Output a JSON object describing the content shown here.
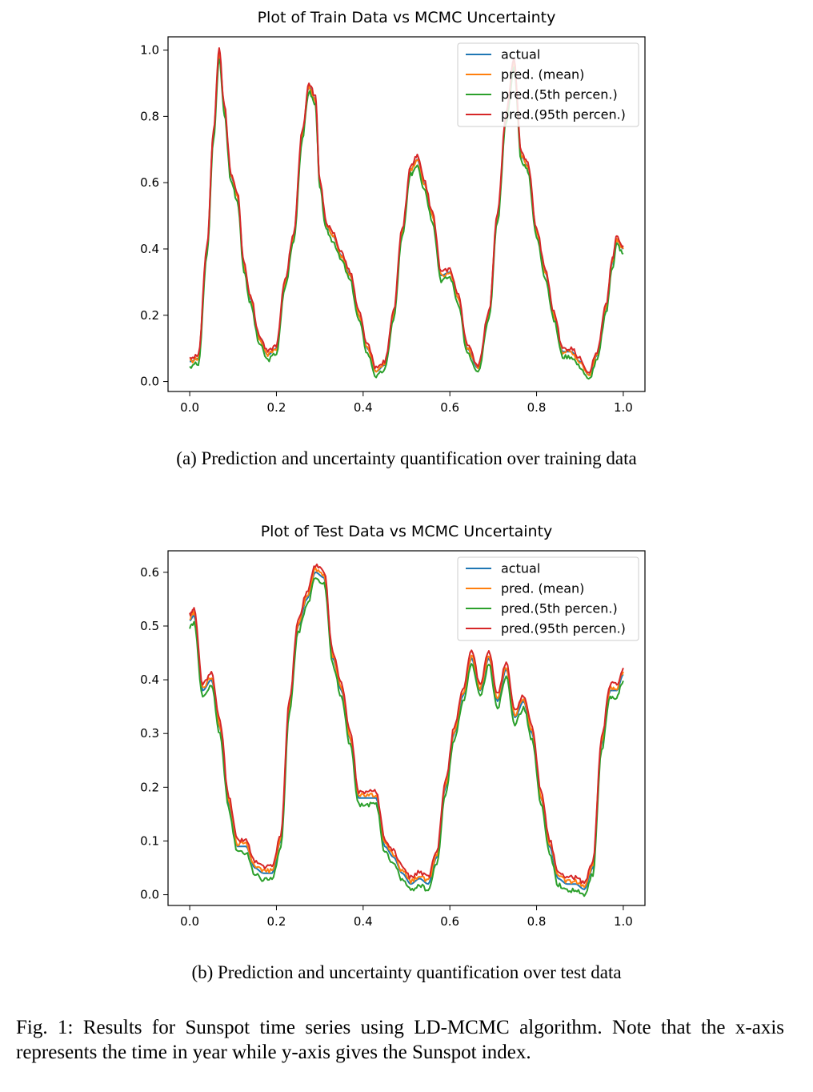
{
  "chart_data": [
    {
      "type": "line",
      "title": "Plot of Train Data vs MCMC Uncertainty",
      "xlabel": "",
      "ylabel": "",
      "xlim": [
        -0.05,
        1.05
      ],
      "ylim": [
        -0.03,
        1.04
      ],
      "xticks": [
        "0.0",
        "0.2",
        "0.4",
        "0.6",
        "0.8",
        "1.0"
      ],
      "yticks": [
        "0.0",
        "0.2",
        "0.4",
        "0.6",
        "0.8",
        "1.0"
      ],
      "grid": false,
      "legend_position": "top-right",
      "x": [
        0.0,
        0.02,
        0.04,
        0.055,
        0.068,
        0.08,
        0.095,
        0.11,
        0.125,
        0.14,
        0.16,
        0.18,
        0.2,
        0.22,
        0.24,
        0.26,
        0.275,
        0.29,
        0.3,
        0.315,
        0.33,
        0.35,
        0.37,
        0.39,
        0.41,
        0.43,
        0.45,
        0.47,
        0.49,
        0.51,
        0.525,
        0.54,
        0.56,
        0.58,
        0.6,
        0.62,
        0.64,
        0.665,
        0.69,
        0.71,
        0.73,
        0.748,
        0.765,
        0.78,
        0.8,
        0.82,
        0.84,
        0.86,
        0.88,
        0.9,
        0.92,
        0.94,
        0.96,
        0.975,
        0.985,
        1.0
      ],
      "series": [
        {
          "name": "actual",
          "color": "#1f77b4",
          "offset": 0,
          "values": [
            0.06,
            0.07,
            0.4,
            0.75,
            0.99,
            0.82,
            0.62,
            0.56,
            0.35,
            0.25,
            0.13,
            0.08,
            0.1,
            0.3,
            0.44,
            0.75,
            0.89,
            0.85,
            0.6,
            0.47,
            0.44,
            0.38,
            0.32,
            0.2,
            0.1,
            0.03,
            0.05,
            0.2,
            0.45,
            0.64,
            0.67,
            0.6,
            0.5,
            0.32,
            0.33,
            0.25,
            0.1,
            0.04,
            0.2,
            0.5,
            0.8,
            0.96,
            0.68,
            0.65,
            0.45,
            0.33,
            0.2,
            0.09,
            0.09,
            0.06,
            0.02,
            0.08,
            0.22,
            0.36,
            0.43,
            0.4
          ]
        },
        {
          "name": "pred. (mean)",
          "color": "#ff7f0e",
          "offset": 0,
          "values": [
            0.06,
            0.07,
            0.4,
            0.75,
            0.99,
            0.82,
            0.62,
            0.56,
            0.35,
            0.25,
            0.13,
            0.08,
            0.1,
            0.3,
            0.44,
            0.75,
            0.89,
            0.85,
            0.6,
            0.47,
            0.44,
            0.38,
            0.32,
            0.2,
            0.1,
            0.03,
            0.05,
            0.2,
            0.45,
            0.64,
            0.67,
            0.6,
            0.5,
            0.32,
            0.33,
            0.25,
            0.1,
            0.04,
            0.2,
            0.5,
            0.8,
            0.96,
            0.68,
            0.65,
            0.45,
            0.33,
            0.2,
            0.09,
            0.09,
            0.06,
            0.02,
            0.08,
            0.22,
            0.36,
            0.43,
            0.4
          ]
        },
        {
          "name": "pred.(5th percen.)",
          "color": "#2ca02c",
          "offset": -0.015,
          "values": [
            0.06,
            0.07,
            0.4,
            0.75,
            0.99,
            0.82,
            0.62,
            0.56,
            0.35,
            0.25,
            0.13,
            0.08,
            0.1,
            0.3,
            0.44,
            0.75,
            0.89,
            0.85,
            0.6,
            0.47,
            0.44,
            0.38,
            0.32,
            0.2,
            0.1,
            0.03,
            0.05,
            0.2,
            0.45,
            0.64,
            0.67,
            0.6,
            0.5,
            0.32,
            0.33,
            0.25,
            0.1,
            0.04,
            0.2,
            0.5,
            0.8,
            0.96,
            0.68,
            0.65,
            0.45,
            0.33,
            0.2,
            0.09,
            0.09,
            0.06,
            0.02,
            0.08,
            0.22,
            0.36,
            0.43,
            0.4
          ]
        },
        {
          "name": "pred.(95th percen.)",
          "color": "#d62728",
          "offset": 0.01,
          "values": [
            0.06,
            0.07,
            0.4,
            0.75,
            0.99,
            0.82,
            0.62,
            0.56,
            0.35,
            0.25,
            0.13,
            0.08,
            0.1,
            0.3,
            0.44,
            0.75,
            0.89,
            0.85,
            0.6,
            0.47,
            0.44,
            0.38,
            0.32,
            0.2,
            0.1,
            0.03,
            0.05,
            0.2,
            0.45,
            0.64,
            0.67,
            0.6,
            0.5,
            0.32,
            0.33,
            0.25,
            0.1,
            0.04,
            0.2,
            0.5,
            0.8,
            0.96,
            0.68,
            0.65,
            0.45,
            0.33,
            0.2,
            0.09,
            0.09,
            0.06,
            0.02,
            0.08,
            0.22,
            0.36,
            0.43,
            0.4
          ]
        }
      ]
    },
    {
      "type": "line",
      "title": "Plot of Test Data vs MCMC Uncertainty",
      "xlabel": "",
      "ylabel": "",
      "xlim": [
        -0.05,
        1.05
      ],
      "ylim": [
        -0.02,
        0.64
      ],
      "xticks": [
        "0.0",
        "0.2",
        "0.4",
        "0.6",
        "0.8",
        "1.0"
      ],
      "yticks": [
        "0.0",
        "0.1",
        "0.2",
        "0.3",
        "0.4",
        "0.5",
        "0.6"
      ],
      "grid": false,
      "legend_position": "top-right",
      "x": [
        0.0,
        0.01,
        0.03,
        0.05,
        0.07,
        0.09,
        0.11,
        0.13,
        0.15,
        0.17,
        0.19,
        0.21,
        0.23,
        0.25,
        0.27,
        0.29,
        0.31,
        0.33,
        0.35,
        0.37,
        0.39,
        0.41,
        0.43,
        0.45,
        0.47,
        0.49,
        0.51,
        0.53,
        0.55,
        0.57,
        0.59,
        0.61,
        0.63,
        0.65,
        0.67,
        0.69,
        0.71,
        0.73,
        0.75,
        0.77,
        0.79,
        0.81,
        0.83,
        0.85,
        0.87,
        0.89,
        0.91,
        0.93,
        0.95,
        0.97,
        0.985,
        1.0
      ],
      "series": [
        {
          "name": "actual",
          "color": "#1f77b4",
          "offset": 0,
          "values": [
            0.51,
            0.52,
            0.38,
            0.4,
            0.31,
            0.17,
            0.09,
            0.09,
            0.05,
            0.04,
            0.04,
            0.1,
            0.35,
            0.5,
            0.55,
            0.6,
            0.59,
            0.44,
            0.38,
            0.29,
            0.18,
            0.18,
            0.18,
            0.09,
            0.07,
            0.04,
            0.02,
            0.03,
            0.02,
            0.07,
            0.2,
            0.3,
            0.37,
            0.44,
            0.38,
            0.44,
            0.36,
            0.42,
            0.33,
            0.36,
            0.3,
            0.18,
            0.09,
            0.03,
            0.02,
            0.02,
            0.01,
            0.05,
            0.28,
            0.38,
            0.38,
            0.41
          ]
        },
        {
          "name": "pred. (mean)",
          "color": "#ff7f0e",
          "offset": 0.005,
          "values": [
            0.51,
            0.52,
            0.38,
            0.4,
            0.31,
            0.17,
            0.09,
            0.09,
            0.05,
            0.04,
            0.04,
            0.1,
            0.35,
            0.5,
            0.55,
            0.6,
            0.59,
            0.44,
            0.38,
            0.29,
            0.18,
            0.18,
            0.18,
            0.09,
            0.07,
            0.04,
            0.02,
            0.03,
            0.02,
            0.07,
            0.2,
            0.3,
            0.37,
            0.44,
            0.38,
            0.44,
            0.36,
            0.42,
            0.33,
            0.36,
            0.3,
            0.18,
            0.09,
            0.03,
            0.02,
            0.02,
            0.01,
            0.05,
            0.28,
            0.38,
            0.38,
            0.41
          ]
        },
        {
          "name": "pred.(5th percen.)",
          "color": "#2ca02c",
          "offset": -0.012,
          "values": [
            0.51,
            0.52,
            0.38,
            0.4,
            0.31,
            0.17,
            0.09,
            0.09,
            0.05,
            0.04,
            0.04,
            0.1,
            0.35,
            0.5,
            0.55,
            0.6,
            0.59,
            0.44,
            0.38,
            0.29,
            0.18,
            0.18,
            0.18,
            0.09,
            0.07,
            0.04,
            0.02,
            0.03,
            0.02,
            0.07,
            0.2,
            0.3,
            0.37,
            0.44,
            0.38,
            0.44,
            0.36,
            0.42,
            0.33,
            0.36,
            0.3,
            0.18,
            0.09,
            0.03,
            0.02,
            0.02,
            0.01,
            0.05,
            0.28,
            0.38,
            0.38,
            0.41
          ]
        },
        {
          "name": "pred.(95th percen.)",
          "color": "#d62728",
          "offset": 0.012,
          "values": [
            0.51,
            0.52,
            0.38,
            0.4,
            0.31,
            0.17,
            0.09,
            0.09,
            0.05,
            0.04,
            0.04,
            0.1,
            0.35,
            0.5,
            0.55,
            0.6,
            0.59,
            0.44,
            0.38,
            0.29,
            0.18,
            0.18,
            0.18,
            0.09,
            0.07,
            0.04,
            0.02,
            0.03,
            0.02,
            0.07,
            0.2,
            0.3,
            0.37,
            0.44,
            0.38,
            0.44,
            0.36,
            0.42,
            0.33,
            0.36,
            0.3,
            0.18,
            0.09,
            0.03,
            0.02,
            0.02,
            0.01,
            0.05,
            0.28,
            0.38,
            0.38,
            0.41
          ]
        }
      ]
    }
  ],
  "captions": {
    "a": "(a) Prediction and uncertainty quantification over training data",
    "b": "(b) Prediction and uncertainty quantification over test data"
  },
  "figure_caption": "Fig. 1: Results for Sunspot time series using LD-MCMC algorithm. Note that the x-axis represents the time in year while y-axis gives the Sunspot index."
}
